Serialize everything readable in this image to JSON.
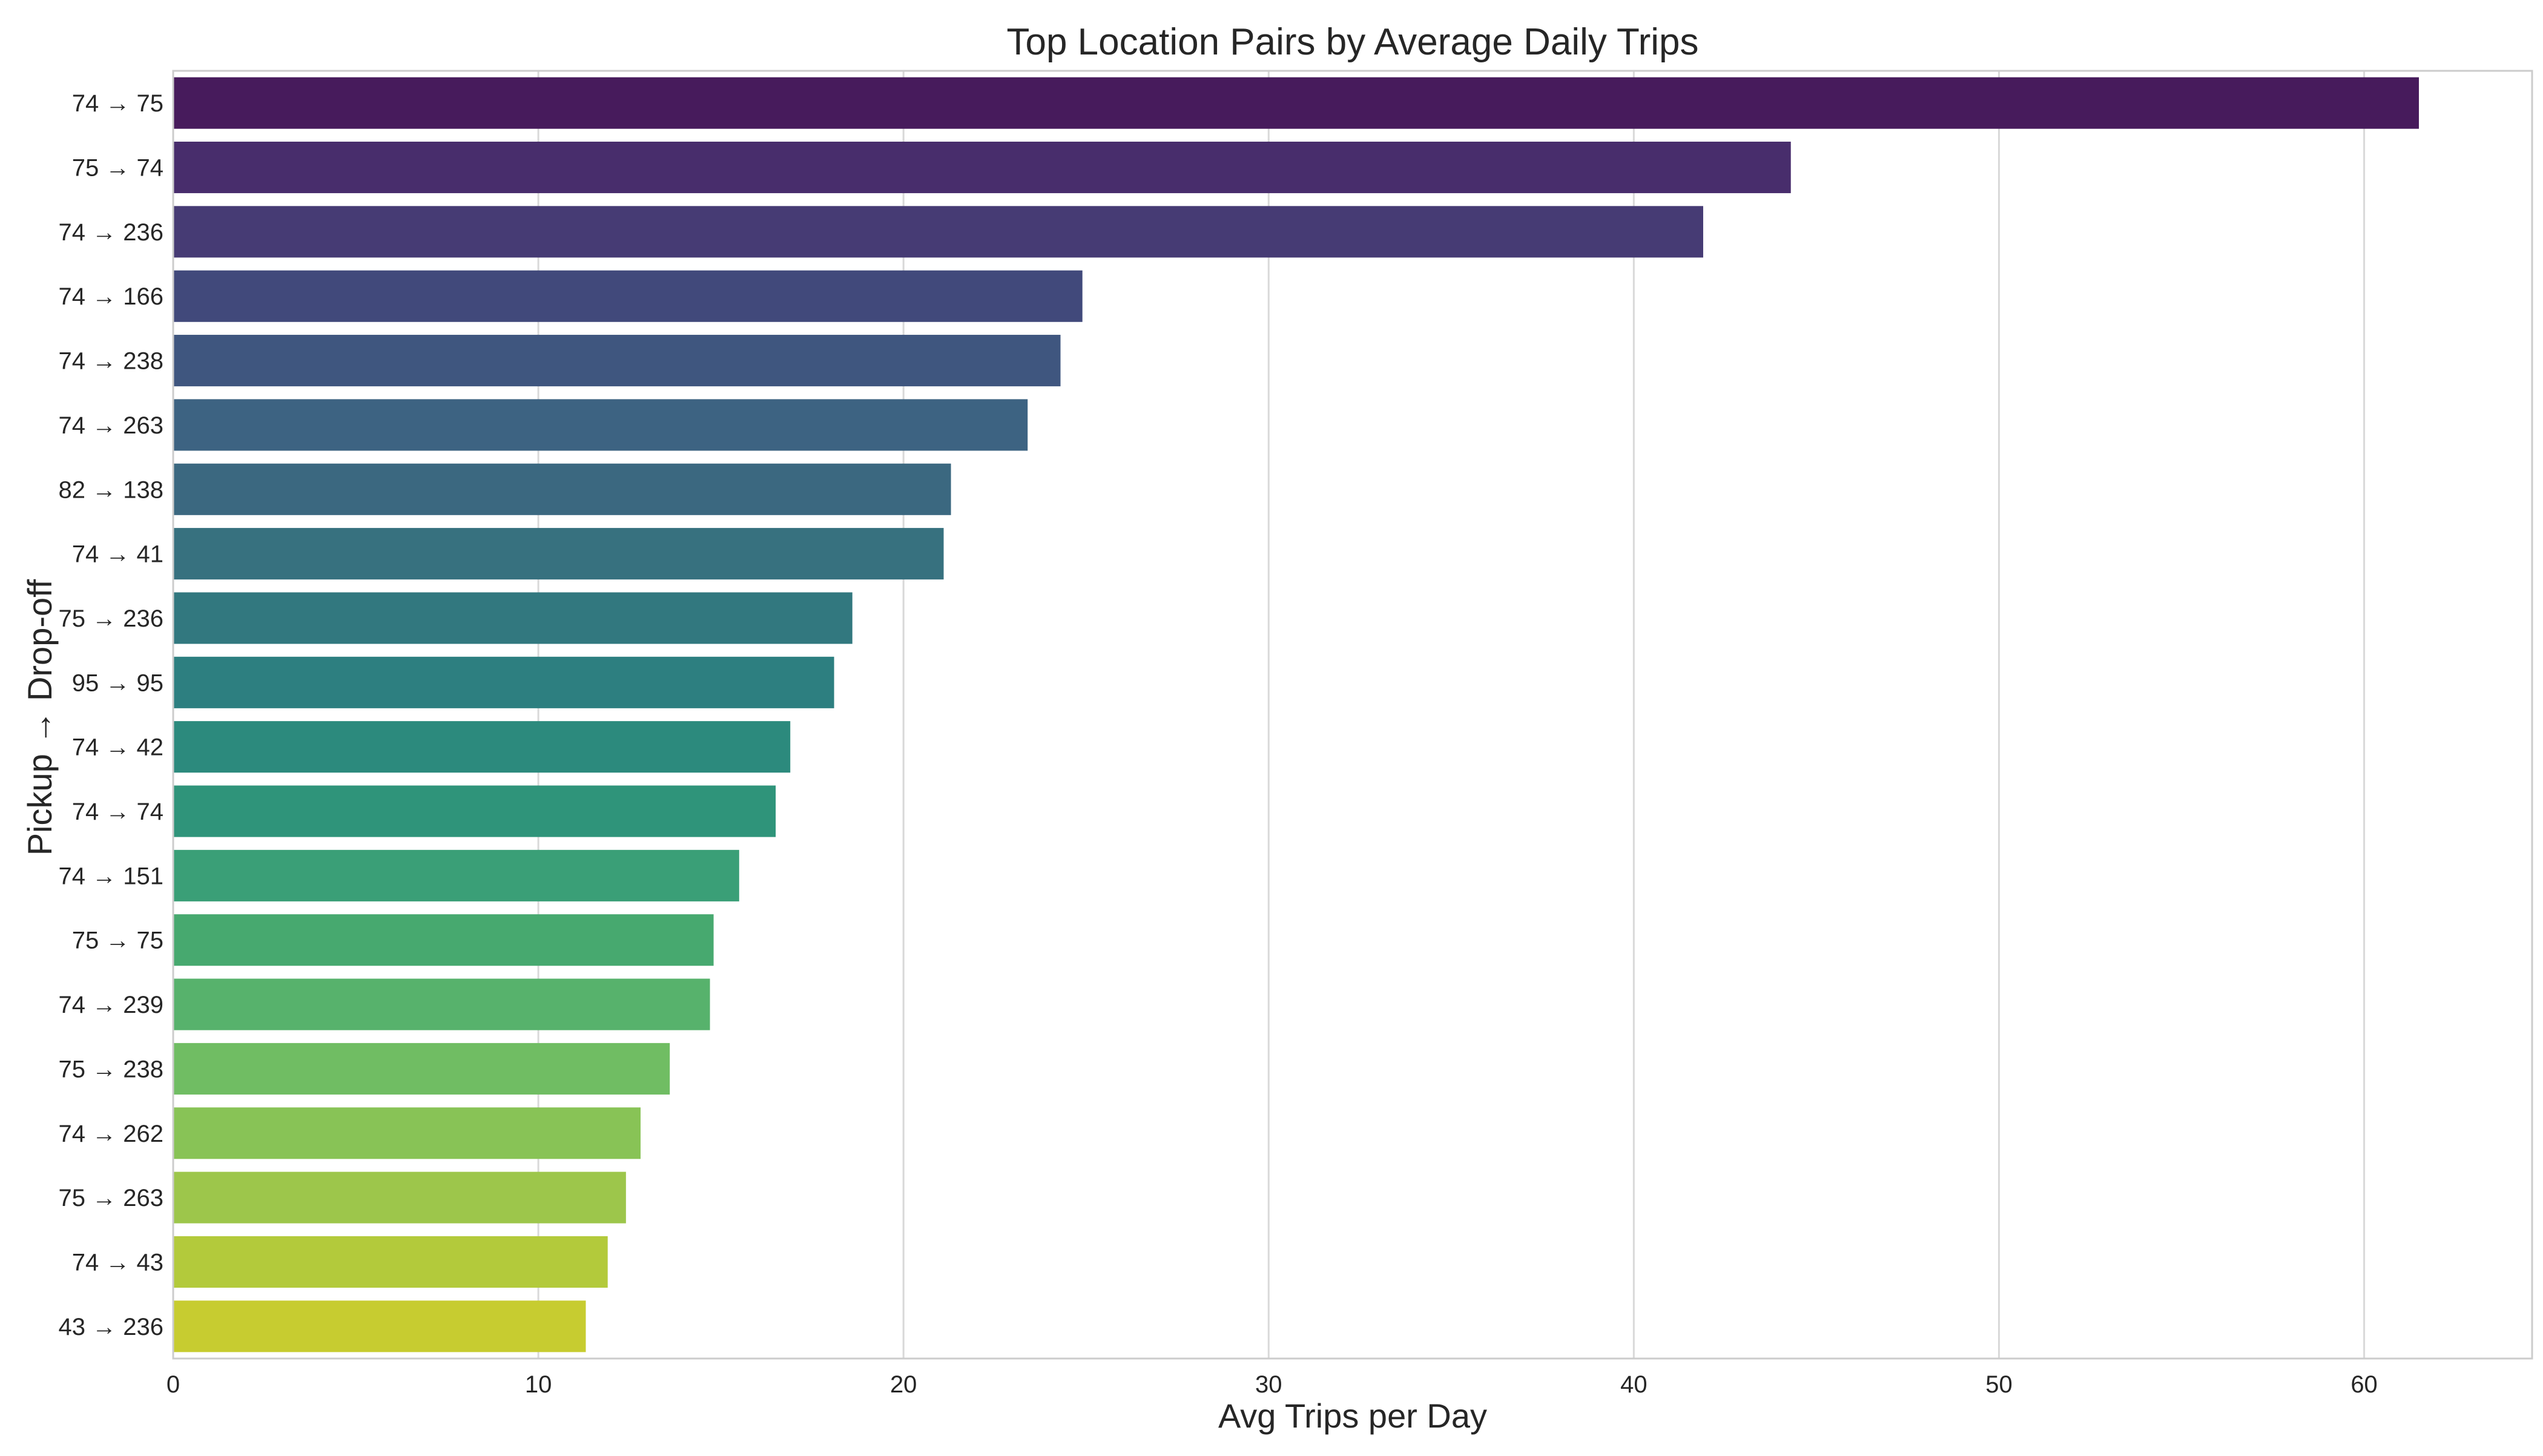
{
  "chart_data": {
    "type": "bar",
    "orientation": "horizontal",
    "title": "Top Location Pairs by Average Daily Trips",
    "xlabel": "Avg Trips per Day",
    "ylabel": "Pickup → Drop-off",
    "xlim": [
      0,
      64.6
    ],
    "xticks": [
      0,
      10,
      20,
      30,
      40,
      50,
      60
    ],
    "grid": "vertical",
    "categories": [
      "74 → 75",
      "75 → 74",
      "74 → 236",
      "74 → 166",
      "74 → 238",
      "74 → 263",
      "82 → 138",
      "74 → 41",
      "75 → 236",
      "95 → 95",
      "74 → 42",
      "74 → 74",
      "74 → 151",
      "75 → 75",
      "74 → 239",
      "75 → 238",
      "74 → 262",
      "75 → 263",
      "74 → 43",
      "43 → 236"
    ],
    "values": [
      61.5,
      44.3,
      41.9,
      24.9,
      24.3,
      23.4,
      21.3,
      21.1,
      18.6,
      18.1,
      16.9,
      16.5,
      15.5,
      14.8,
      14.7,
      13.6,
      12.8,
      12.4,
      11.9,
      11.3
    ],
    "colors": [
      "#471b5c",
      "#482d6c",
      "#463b74",
      "#41497b",
      "#3f567f",
      "#3d6382",
      "#3b6880",
      "#37717f",
      "#32787f",
      "#2d7f80",
      "#2c8a7d",
      "#2f947a",
      "#3a9f77",
      "#47a96f",
      "#57b26c",
      "#70bd63",
      "#88c356",
      "#9dc64b",
      "#b3ca3b",
      "#c7cc30"
    ]
  }
}
